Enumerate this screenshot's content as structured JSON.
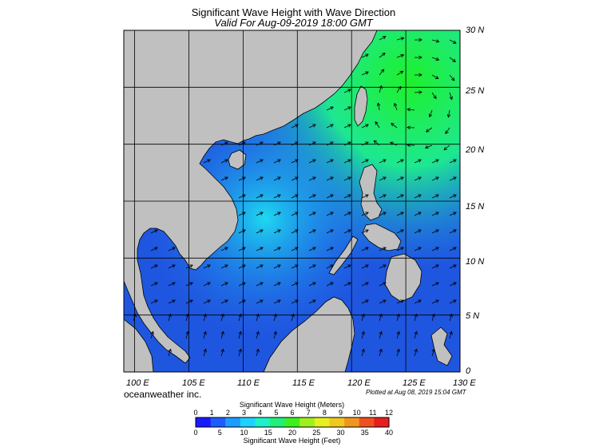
{
  "header": {
    "title": "Significant Wave Height with Wave Direction",
    "subtitle": "Valid For Aug-09-2019 18:00 GMT"
  },
  "map": {
    "lat_labels": [
      "30 N",
      "25 N",
      "20 N",
      "15 N",
      "10 N",
      "5 N",
      "0"
    ],
    "lon_labels": [
      "100 E",
      "105 E",
      "110 E",
      "115 E",
      "120 E",
      "125 E",
      "130 E"
    ],
    "lat_range": [
      0,
      30
    ],
    "lon_range": [
      99,
      130
    ],
    "land_color": "#c0c0c0",
    "ocean_low_color": "#1f56e0",
    "ocean_high_color": "#1ef02c",
    "arrow_color": "#000000"
  },
  "footer": {
    "credit": "oceanweather inc.",
    "plotted": "Plotted at Aug 08, 2019 15:04 GMT"
  },
  "colorbar": {
    "title_meters": "Significant Wave Height (Meters)",
    "title_feet": "Significant Wave Height (Feet)",
    "meters_ticks": [
      "0",
      "1",
      "2",
      "3",
      "4",
      "5",
      "6",
      "7",
      "8",
      "9",
      "10",
      "11",
      "12"
    ],
    "feet_ticks": [
      "0",
      "5",
      "10",
      "15",
      "20",
      "25",
      "30",
      "35",
      "40"
    ],
    "colors": [
      "#1a1aff",
      "#1f5cff",
      "#1e9bff",
      "#1ed2ff",
      "#1ef0c8",
      "#1ef078",
      "#3cf01e",
      "#a0f01e",
      "#e6f01e",
      "#f0c81e",
      "#f0961e",
      "#f0501e",
      "#e61e1e"
    ]
  }
}
